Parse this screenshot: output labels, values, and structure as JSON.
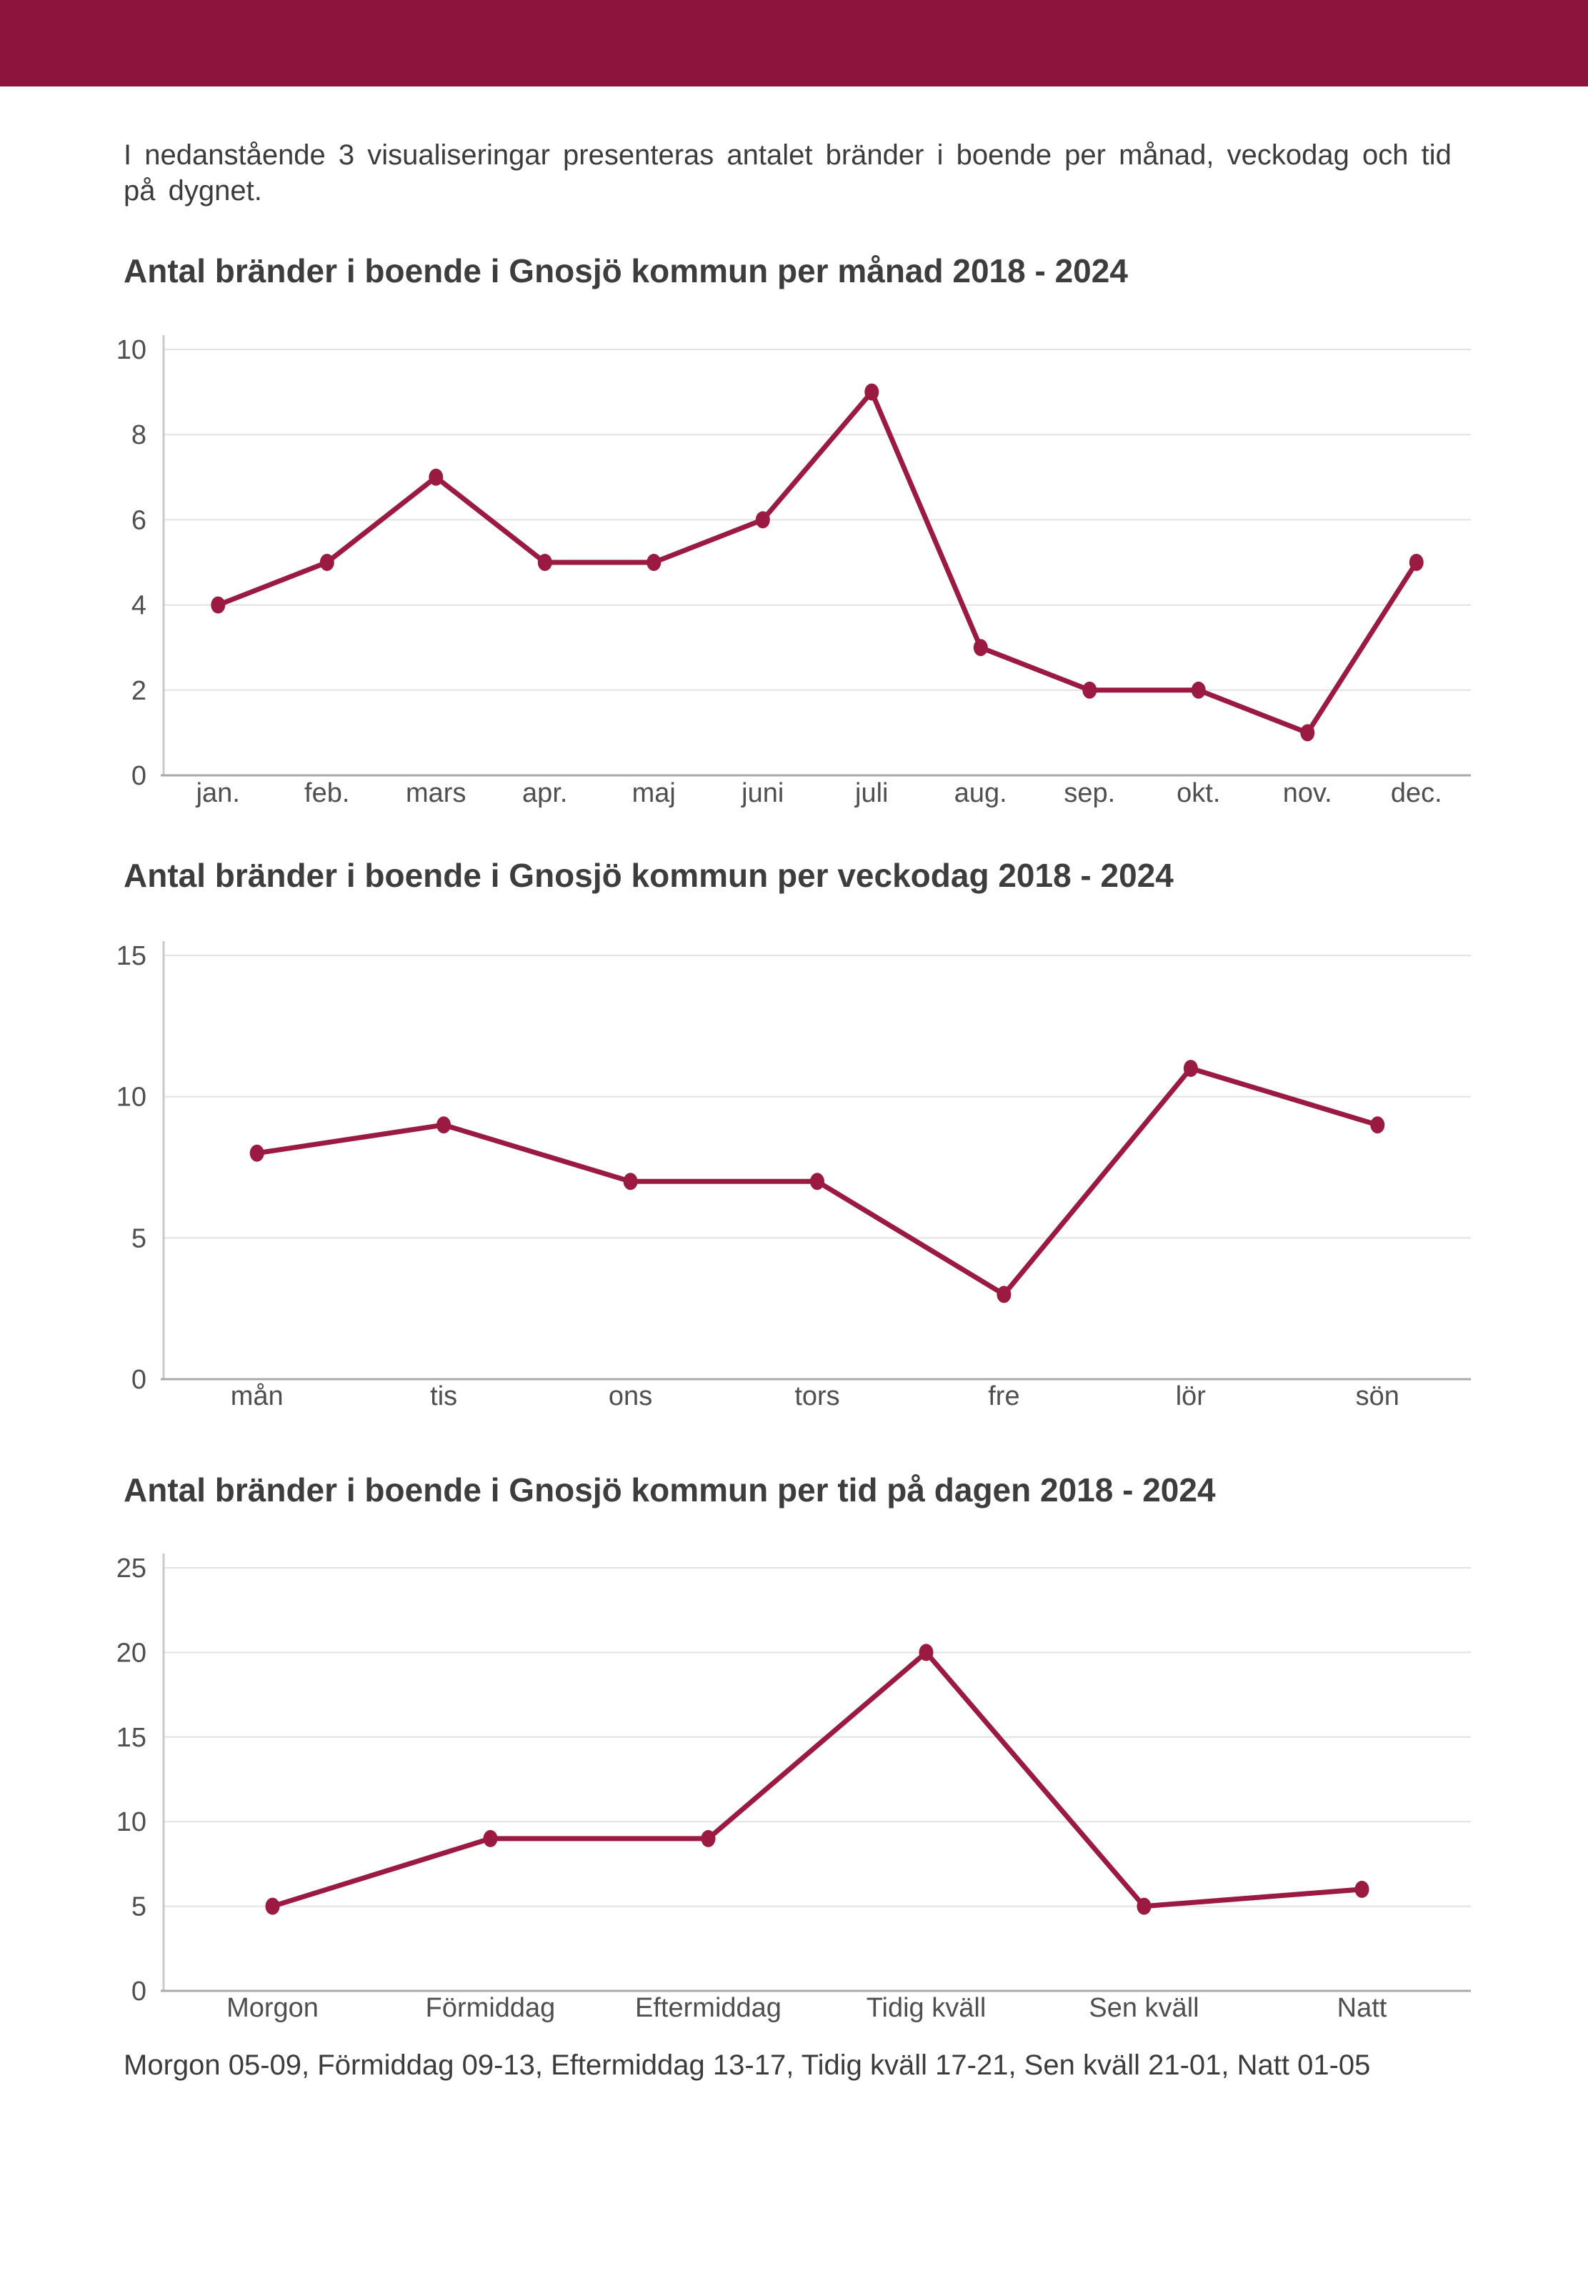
{
  "header": {
    "bar_color": "#8d143c"
  },
  "intro": {
    "text": "I nedanstående 3 visualiseringar presenteras antalet bränder i boende per månad, veckodag och tid på dygnet."
  },
  "chart_data": [
    {
      "type": "line",
      "title": "Antal bränder i boende i Gnosjö kommun per månad 2018 - 2024",
      "categories": [
        "jan.",
        "feb.",
        "mars",
        "apr.",
        "maj",
        "juni",
        "juli",
        "aug.",
        "sep.",
        "okt.",
        "nov.",
        "dec."
      ],
      "values": [
        4,
        5,
        7,
        5,
        5,
        6,
        9,
        3,
        2,
        2,
        1,
        5
      ],
      "xlabel": "",
      "ylabel": "",
      "ylim": [
        0,
        10
      ],
      "yticks": [
        0,
        2,
        4,
        6,
        8,
        10
      ],
      "grid": true,
      "legend": "none",
      "line_color": "#9a1a42"
    },
    {
      "type": "line",
      "title": "Antal bränder i boende i Gnosjö kommun per veckodag 2018 - 2024",
      "categories": [
        "mån",
        "tis",
        "ons",
        "tors",
        "fre",
        "lör",
        "sön"
      ],
      "values": [
        8,
        9,
        7,
        7,
        3,
        11,
        9
      ],
      "xlabel": "",
      "ylabel": "",
      "ylim": [
        0,
        15
      ],
      "yticks": [
        0,
        5,
        10,
        15
      ],
      "grid": true,
      "legend": "none",
      "line_color": "#9a1a42"
    },
    {
      "type": "line",
      "title": "Antal bränder i boende i Gnosjö kommun per tid på dagen 2018 - 2024",
      "categories": [
        "Morgon",
        "Förmiddag",
        "Eftermiddag",
        "Tidig kväll",
        "Sen kväll",
        "Natt"
      ],
      "values": [
        5,
        9,
        9,
        20,
        5,
        6
      ],
      "xlabel": "",
      "ylabel": "",
      "ylim": [
        0,
        25
      ],
      "yticks": [
        0,
        5,
        10,
        15,
        20,
        25
      ],
      "grid": true,
      "legend": "none",
      "line_color": "#9a1a42"
    }
  ],
  "footer": {
    "text": "Morgon 05-09, Förmiddag 09-13, Eftermiddag 13-17, Tidig kväll 17-21, Sen kväll 21-01, Natt 01-05"
  }
}
